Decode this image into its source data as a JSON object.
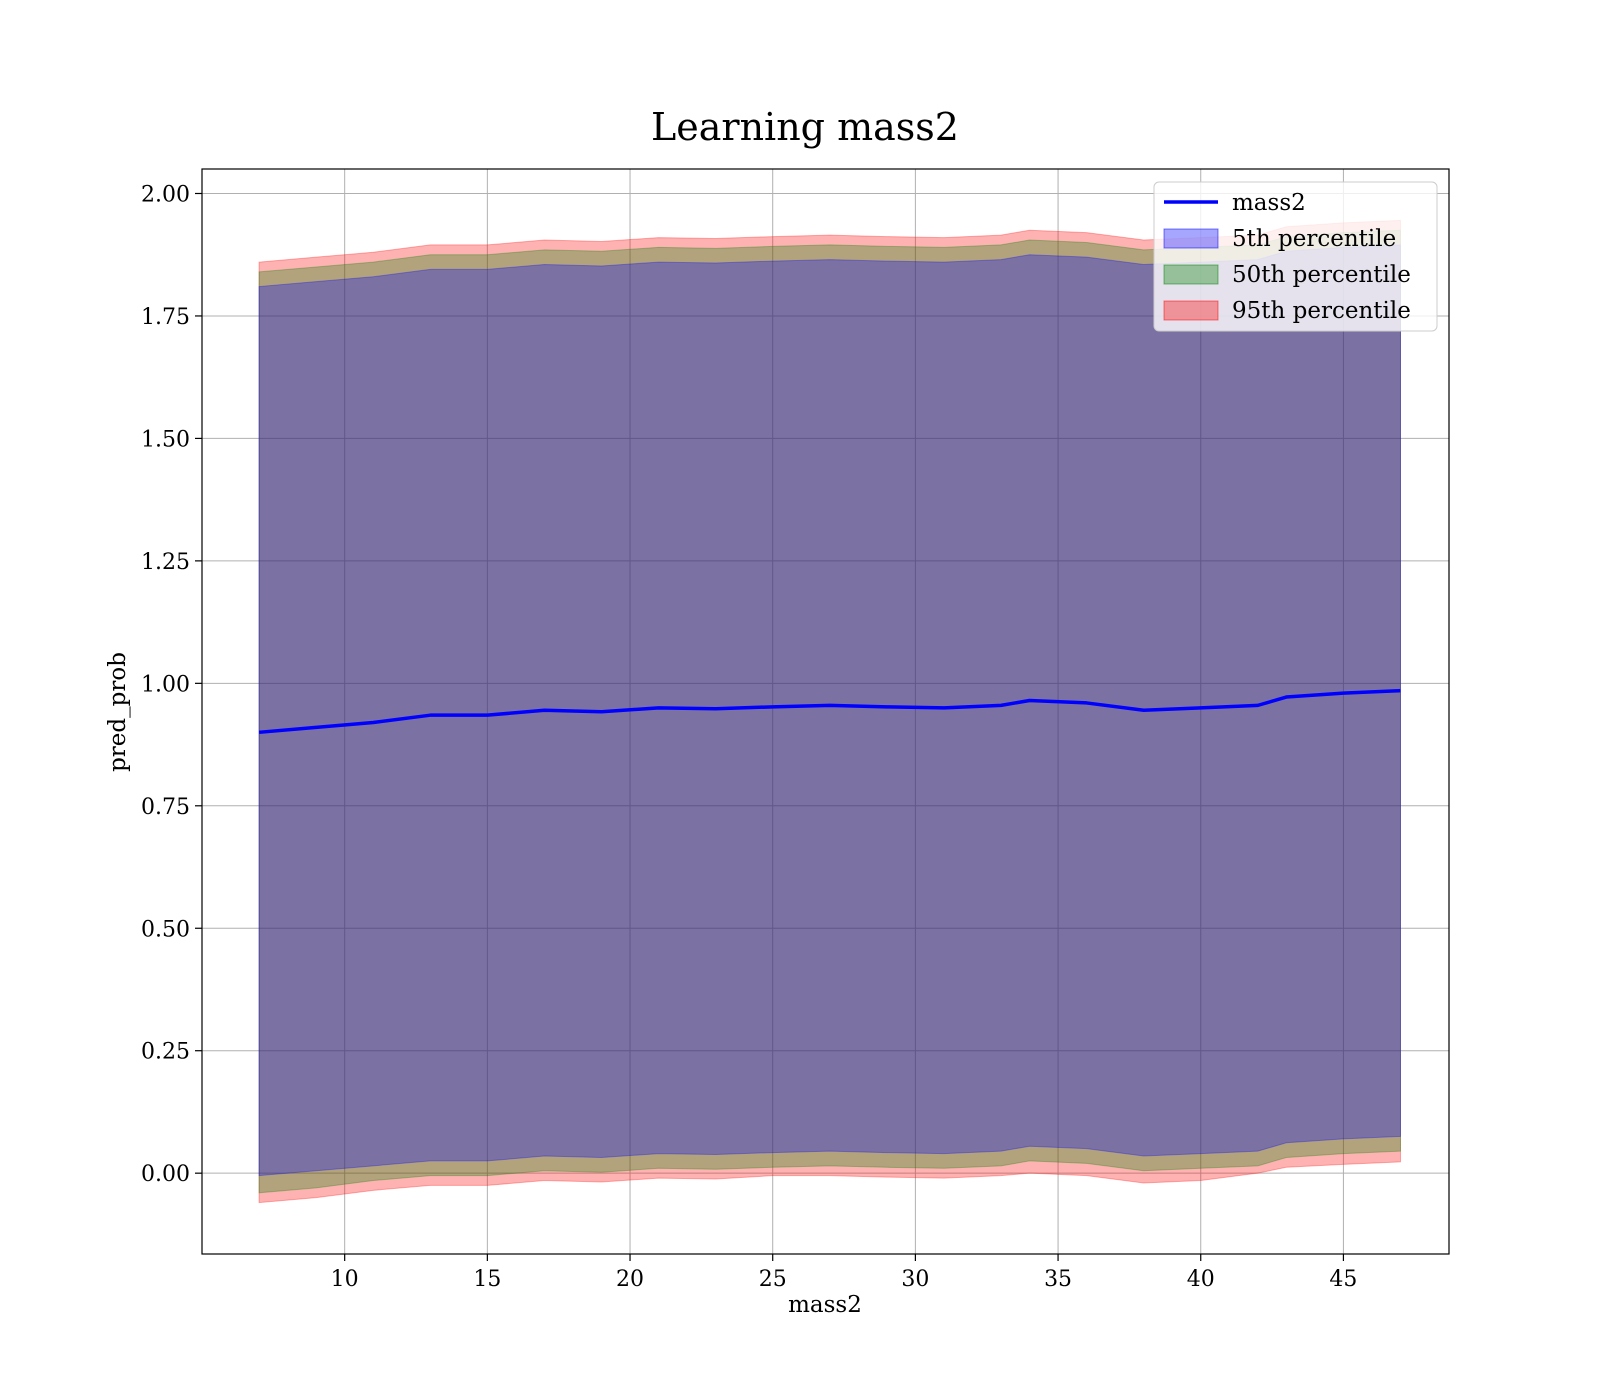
{
  "chart_data": {
    "type": "area",
    "title": "Learning mass2",
    "xlabel": "mass2",
    "ylabel": "pred_prob",
    "xlim": [
      5.0,
      48.7
    ],
    "ylim": [
      -0.165,
      2.05
    ],
    "xticks": [
      10,
      15,
      20,
      25,
      30,
      35,
      40,
      45
    ],
    "yticks": [
      0.0,
      0.25,
      0.5,
      0.75,
      1.0,
      1.25,
      1.5,
      1.75,
      2.0
    ],
    "xtick_labels": [
      "10",
      "15",
      "20",
      "25",
      "30",
      "35",
      "40",
      "45"
    ],
    "ytick_labels": [
      "0.00",
      "0.25",
      "0.50",
      "0.75",
      "1.00",
      "1.25",
      "1.50",
      "1.75",
      "2.00"
    ],
    "grid": true,
    "legend_position": "top-right",
    "x": [
      7,
      9,
      11,
      13,
      15,
      17,
      19,
      21,
      23,
      25,
      27,
      29,
      31,
      33,
      34,
      36,
      38,
      40,
      42,
      43,
      45,
      47
    ],
    "line": {
      "name": "mass2",
      "color": "#0000ff",
      "values": [
        0.9,
        0.91,
        0.92,
        0.935,
        0.935,
        0.945,
        0.942,
        0.95,
        0.948,
        0.952,
        0.955,
        0.952,
        0.95,
        0.955,
        0.965,
        0.96,
        0.945,
        0.95,
        0.955,
        0.972,
        0.98,
        0.985
      ]
    },
    "bands": [
      {
        "name": "95th percentile",
        "color": "#ff0000",
        "alpha": 0.3,
        "lower": [
          -0.06,
          -0.05,
          -0.035,
          -0.025,
          -0.025,
          -0.015,
          -0.018,
          -0.01,
          -0.012,
          -0.005,
          -0.005,
          -0.008,
          -0.01,
          -0.005,
          0.0,
          -0.005,
          -0.02,
          -0.015,
          0.0,
          0.012,
          0.018,
          0.023
        ],
        "upper": [
          1.86,
          1.87,
          1.88,
          1.895,
          1.895,
          1.905,
          1.902,
          1.91,
          1.908,
          1.912,
          1.915,
          1.912,
          1.91,
          1.915,
          1.925,
          1.92,
          1.905,
          1.91,
          1.915,
          1.932,
          1.94,
          1.945
        ]
      },
      {
        "name": "50th percentile",
        "color": "#008000",
        "alpha": 0.3,
        "lower": [
          -0.04,
          -0.03,
          -0.015,
          -0.005,
          -0.005,
          0.005,
          0.002,
          0.01,
          0.008,
          0.012,
          0.015,
          0.012,
          0.01,
          0.015,
          0.025,
          0.02,
          0.005,
          0.01,
          0.015,
          0.032,
          0.04,
          0.045
        ],
        "upper": [
          1.84,
          1.85,
          1.86,
          1.875,
          1.875,
          1.885,
          1.882,
          1.89,
          1.888,
          1.892,
          1.895,
          1.892,
          1.89,
          1.895,
          1.905,
          1.9,
          1.885,
          1.89,
          1.895,
          1.912,
          1.92,
          1.925
        ]
      },
      {
        "name": "5th percentile",
        "color": "#0000ff",
        "alpha": 0.3,
        "lower": [
          -0.005,
          0.005,
          0.015,
          0.025,
          0.025,
          0.035,
          0.032,
          0.04,
          0.038,
          0.042,
          0.045,
          0.042,
          0.04,
          0.045,
          0.055,
          0.05,
          0.035,
          0.04,
          0.045,
          0.062,
          0.07,
          0.075
        ],
        "upper": [
          1.81,
          1.82,
          1.83,
          1.845,
          1.845,
          1.855,
          1.852,
          1.86,
          1.858,
          1.862,
          1.865,
          1.862,
          1.86,
          1.865,
          1.875,
          1.87,
          1.855,
          1.86,
          1.865,
          1.882,
          1.89,
          1.895
        ]
      }
    ],
    "legend": [
      {
        "name": "mass2",
        "kind": "line",
        "color": "#0000ff"
      },
      {
        "name": "5th percentile",
        "kind": "patch",
        "color": "#0000ff"
      },
      {
        "name": "50th percentile",
        "kind": "patch",
        "color": "#008000"
      },
      {
        "name": "95th percentile",
        "kind": "patch",
        "color": "#ff0000"
      }
    ]
  }
}
